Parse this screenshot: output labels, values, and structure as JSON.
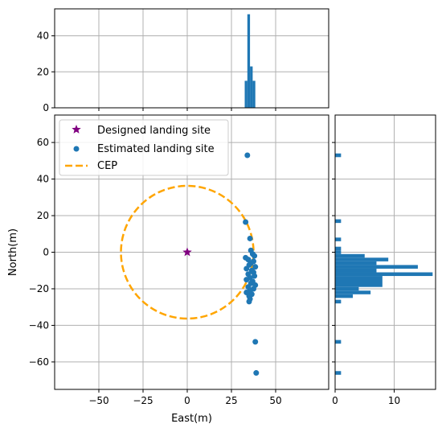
{
  "chart_data": [
    {
      "type": "scatter",
      "panel": "main",
      "xlabel": "East(m)",
      "ylabel": "North(m)",
      "xlim": [
        -75,
        80
      ],
      "ylim": [
        -75,
        75
      ],
      "xticks": [
        -50,
        -25,
        0,
        25,
        50
      ],
      "yticks": [
        -60,
        -40,
        -20,
        0,
        20,
        40,
        60
      ],
      "grid": true,
      "legend_position": "top-left",
      "legend": [
        {
          "label": "Designed landing site",
          "marker": "star",
          "color": "#800080"
        },
        {
          "label": "Estimated landing site",
          "marker": "circle",
          "color": "#1f77b4"
        },
        {
          "label": "CEP",
          "marker": "dashed-line",
          "color": "#ffa500"
        }
      ],
      "designed_site": {
        "x": 0,
        "y": 0
      },
      "cep_radius": 37.5,
      "series": [
        {
          "name": "Estimated landing site",
          "points": [
            [
              34,
              53
            ],
            [
              33,
              16.5
            ],
            [
              35.5,
              7.5
            ],
            [
              36,
              1
            ],
            [
              37,
              -1
            ],
            [
              38,
              -2
            ],
            [
              33,
              -3
            ],
            [
              34.5,
              -4
            ],
            [
              37.5,
              -5
            ],
            [
              36,
              -6
            ],
            [
              35,
              -7
            ],
            [
              38.5,
              -8
            ],
            [
              33.5,
              -9
            ],
            [
              36.5,
              -10
            ],
            [
              37.5,
              -11
            ],
            [
              34.5,
              -12
            ],
            [
              38,
              -13
            ],
            [
              35.5,
              -14
            ],
            [
              33.5,
              -15
            ],
            [
              37,
              -16
            ],
            [
              36,
              -17
            ],
            [
              38.5,
              -18
            ],
            [
              34.5,
              -19
            ],
            [
              37.5,
              -20
            ],
            [
              35.5,
              -21
            ],
            [
              33.5,
              -22
            ],
            [
              36.5,
              -23
            ],
            [
              35,
              -24
            ],
            [
              35.5,
              -25.5
            ],
            [
              35,
              -27
            ],
            [
              38.5,
              -49
            ],
            [
              39,
              -66
            ]
          ]
        }
      ]
    },
    {
      "type": "bar",
      "panel": "top-histogram",
      "description_key": "East distribution",
      "ylim": [
        0,
        55
      ],
      "yticks": [
        0,
        20,
        40
      ],
      "bins": [
        {
          "x0": 32.5,
          "x1": 34,
          "count": 15
        },
        {
          "x0": 34,
          "x1": 35.5,
          "count": 52
        },
        {
          "x0": 35.5,
          "x1": 37,
          "count": 23
        },
        {
          "x0": 37,
          "x1": 38.5,
          "count": 15
        }
      ]
    },
    {
      "type": "bar",
      "panel": "right-histogram",
      "orientation": "horizontal",
      "xlim": [
        0,
        17
      ],
      "xticks": [
        0,
        10
      ],
      "bins": [
        {
          "y0": 52,
          "y1": 54,
          "count": 1
        },
        {
          "y0": 16,
          "y1": 18,
          "count": 1
        },
        {
          "y0": 6,
          "y1": 8,
          "count": 1
        },
        {
          "y0": 1,
          "y1": 3,
          "count": 1
        },
        {
          "y0": -1,
          "y1": 1,
          "count": 1
        },
        {
          "y0": -3,
          "y1": -1,
          "count": 5
        },
        {
          "y0": -5,
          "y1": -3,
          "count": 9
        },
        {
          "y0": -7,
          "y1": -5,
          "count": 7
        },
        {
          "y0": -9,
          "y1": -7,
          "count": 14
        },
        {
          "y0": -11,
          "y1": -9,
          "count": 7
        },
        {
          "y0": -13,
          "y1": -11,
          "count": 16.5
        },
        {
          "y0": -19,
          "y1": -13,
          "count": 8
        },
        {
          "y0": -21,
          "y1": -19,
          "count": 4
        },
        {
          "y0": -23,
          "y1": -21,
          "count": 6
        },
        {
          "y0": -25,
          "y1": -23,
          "count": 3
        },
        {
          "y0": -28,
          "y1": -26,
          "count": 1
        },
        {
          "y0": -50,
          "y1": -48,
          "count": 1
        },
        {
          "y0": -67,
          "y1": -65,
          "count": 1
        }
      ]
    }
  ],
  "colors": {
    "scatter": "#1f77b4",
    "star": "#800080",
    "cep": "#ffa500",
    "grid": "#b0b0b0"
  }
}
